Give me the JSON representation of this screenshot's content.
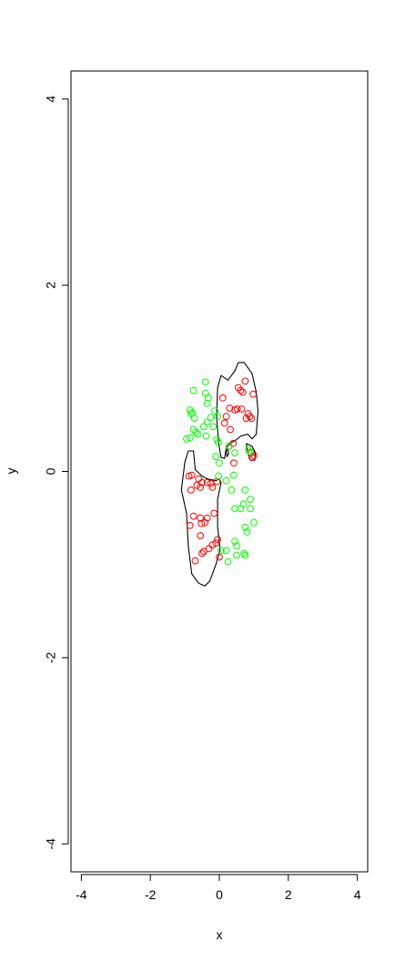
{
  "chart_data": {
    "type": "scatter",
    "title": "",
    "xlabel": "x",
    "ylabel": "y",
    "xlim": [
      -4.3,
      4.3
    ],
    "ylim": [
      -4.3,
      4.3
    ],
    "grid": false,
    "x_ticks": [
      -4,
      -2,
      0,
      2,
      4
    ],
    "y_ticks": [
      -4,
      -2,
      0,
      2,
      4
    ],
    "x_tick_labels": [
      "-4",
      "-2",
      "0",
      "2",
      "4"
    ],
    "y_tick_labels": [
      "-4",
      "-2",
      "0",
      "2",
      "4"
    ],
    "colors": {
      "red_series": "#ff0000",
      "green_series": "#00ff00",
      "contour": "#000000"
    },
    "series": [
      {
        "color": "#ff0000",
        "marker": "open-circle",
        "points": [
          [
            0.75,
            0.97
          ],
          [
            0.55,
            0.9
          ],
          [
            0.62,
            0.87
          ],
          [
            0.68,
            0.85
          ],
          [
            0.98,
            0.83
          ],
          [
            0.1,
            0.79
          ],
          [
            0.3,
            0.68
          ],
          [
            0.52,
            0.67
          ],
          [
            0.65,
            0.67
          ],
          [
            0.45,
            0.66
          ],
          [
            0.83,
            0.62
          ],
          [
            0.88,
            0.59
          ],
          [
            0.2,
            0.59
          ],
          [
            0.78,
            0.57
          ],
          [
            0.93,
            0.57
          ],
          [
            0.15,
            0.52
          ],
          [
            0.32,
            0.45
          ],
          [
            0.28,
            0.27
          ],
          [
            0.4,
            0.3
          ],
          [
            0.42,
            0.09
          ],
          [
            0.95,
            0.15
          ],
          [
            1.0,
            0.17
          ],
          [
            0.92,
            0.2
          ],
          [
            -0.8,
            -0.04
          ],
          [
            -0.88,
            -0.05
          ],
          [
            -0.6,
            -0.08
          ],
          [
            -0.5,
            -0.12
          ],
          [
            -0.35,
            -0.12
          ],
          [
            -0.25,
            -0.13
          ],
          [
            -0.2,
            -0.17
          ],
          [
            -0.55,
            -0.17
          ],
          [
            -0.82,
            -0.2
          ],
          [
            -0.65,
            -0.15
          ],
          [
            -0.07,
            -0.11
          ],
          [
            -0.85,
            -0.58
          ],
          [
            -0.75,
            -0.48
          ],
          [
            -0.55,
            -0.5
          ],
          [
            -0.42,
            -0.55
          ],
          [
            -0.35,
            -0.5
          ],
          [
            -0.15,
            -0.45
          ],
          [
            -0.52,
            -0.56
          ],
          [
            -0.55,
            -0.69
          ],
          [
            -0.05,
            -0.73
          ],
          [
            -0.1,
            -0.77
          ],
          [
            -0.2,
            -0.79
          ],
          [
            -0.3,
            -0.83
          ],
          [
            -0.45,
            -0.86
          ],
          [
            -0.5,
            -0.88
          ],
          [
            -0.7,
            -0.96
          ],
          [
            0.0,
            -0.92
          ]
        ]
      },
      {
        "color": "#00ff00",
        "marker": "open-circle",
        "points": [
          [
            -0.4,
            0.96
          ],
          [
            -0.75,
            0.87
          ],
          [
            -0.4,
            0.84
          ],
          [
            -0.32,
            0.79
          ],
          [
            -0.35,
            0.73
          ],
          [
            -0.85,
            0.66
          ],
          [
            -0.78,
            0.63
          ],
          [
            -0.82,
            0.62
          ],
          [
            -0.13,
            0.65
          ],
          [
            -0.25,
            0.58
          ],
          [
            -0.05,
            0.59
          ],
          [
            -0.72,
            0.57
          ],
          [
            -0.35,
            0.53
          ],
          [
            -0.45,
            0.48
          ],
          [
            -0.18,
            0.48
          ],
          [
            -0.75,
            0.45
          ],
          [
            -0.68,
            0.42
          ],
          [
            -0.62,
            0.4
          ],
          [
            -0.38,
            0.38
          ],
          [
            -0.85,
            0.36
          ],
          [
            -0.95,
            0.35
          ],
          [
            -0.07,
            0.34
          ],
          [
            -0.03,
            0.31
          ],
          [
            -0.1,
            0.16
          ],
          [
            0.0,
            0.09
          ],
          [
            0.28,
            0.27
          ],
          [
            0.45,
            0.2
          ],
          [
            0.42,
            -0.04
          ],
          [
            0.85,
            0.23
          ],
          [
            0.9,
            0.21
          ],
          [
            0.2,
            -0.1
          ],
          [
            0.35,
            -0.2
          ],
          [
            0.75,
            -0.2
          ],
          [
            0.9,
            -0.3
          ],
          [
            0.7,
            -0.35
          ],
          [
            0.62,
            -0.4
          ],
          [
            0.9,
            -0.4
          ],
          [
            0.45,
            -0.4
          ],
          [
            1.0,
            -0.55
          ],
          [
            0.75,
            -0.6
          ],
          [
            0.8,
            -0.65
          ],
          [
            0.45,
            -0.75
          ],
          [
            0.5,
            -0.8
          ],
          [
            0.2,
            -0.85
          ],
          [
            0.5,
            -0.9
          ],
          [
            0.72,
            -0.88
          ],
          [
            0.75,
            -0.9
          ],
          [
            0.25,
            -0.97
          ],
          [
            0.05,
            -0.85
          ],
          [
            -0.02,
            -0.05
          ]
        ]
      }
    ],
    "contours": [
      [
        [
          0.55,
          1.17
        ],
        [
          0.72,
          1.17
        ],
        [
          0.95,
          1.05
        ],
        [
          1.07,
          0.85
        ],
        [
          1.12,
          0.65
        ],
        [
          1.07,
          0.4
        ],
        [
          0.95,
          0.35
        ],
        [
          0.82,
          0.4
        ],
        [
          0.62,
          0.38
        ],
        [
          0.45,
          0.33
        ],
        [
          0.3,
          0.3
        ],
        [
          0.2,
          0.25
        ],
        [
          0.15,
          0.14
        ],
        [
          0.05,
          0.15
        ],
        [
          -0.02,
          0.3
        ],
        [
          -0.08,
          0.6
        ],
        [
          -0.05,
          0.9
        ],
        [
          0.05,
          1.03
        ],
        [
          0.25,
          0.98
        ],
        [
          0.45,
          1.08
        ],
        [
          0.55,
          1.17
        ]
      ],
      [
        [
          -0.9,
          0.22
        ],
        [
          -0.75,
          0.22
        ],
        [
          -0.7,
          0.02
        ],
        [
          -0.5,
          -0.05
        ],
        [
          -0.35,
          -0.08
        ],
        [
          -0.1,
          -0.1
        ],
        [
          0.0,
          -0.08
        ],
        [
          0.05,
          -0.12
        ],
        [
          -0.05,
          -0.3
        ],
        [
          -0.05,
          -0.6
        ],
        [
          0.0,
          -0.75
        ],
        [
          0.02,
          -0.85
        ],
        [
          -0.1,
          -1.0
        ],
        [
          -0.28,
          -1.18
        ],
        [
          -0.42,
          -1.23
        ],
        [
          -0.6,
          -1.2
        ],
        [
          -0.8,
          -1.1
        ],
        [
          -0.9,
          -0.8
        ],
        [
          -0.95,
          -0.45
        ],
        [
          -1.1,
          -0.2
        ],
        [
          -1.0,
          0.1
        ],
        [
          -0.9,
          0.22
        ]
      ],
      [
        [
          0.78,
          0.3
        ],
        [
          0.95,
          0.27
        ],
        [
          1.05,
          0.2
        ],
        [
          1.03,
          0.12
        ],
        [
          0.9,
          0.12
        ],
        [
          0.82,
          0.2
        ],
        [
          0.78,
          0.3
        ]
      ],
      [
        [
          0.2,
          0.22
        ],
        [
          0.25,
          0.24
        ],
        [
          0.27,
          0.19
        ],
        [
          0.22,
          0.16
        ],
        [
          0.2,
          0.22
        ]
      ]
    ]
  }
}
